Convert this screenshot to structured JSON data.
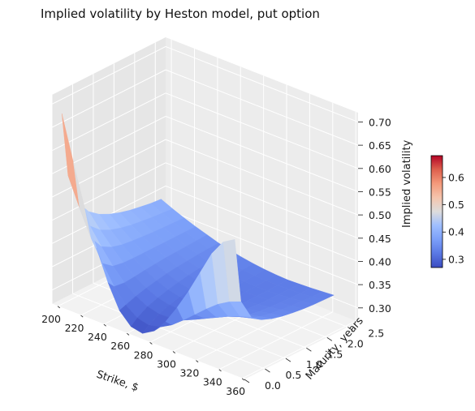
{
  "chart_data": {
    "type": "surface",
    "title": "Implied volatility by Heston model, put option",
    "xlabel": "Strike, $",
    "ylabel": "Maturity, years",
    "zlabel": "Implied volatility",
    "xlim": [
      195,
      362
    ],
    "ylim": [
      0.0,
      2.75
    ],
    "zlim": [
      0.27,
      0.72
    ],
    "x_ticks": [
      200,
      220,
      240,
      260,
      280,
      300,
      320,
      340,
      360
    ],
    "y_ticks": [
      0.0,
      0.5,
      1.0,
      1.5,
      2.0,
      2.5
    ],
    "z_ticks": [
      0.3,
      0.35,
      0.4,
      0.45,
      0.5,
      0.55,
      0.6,
      0.65,
      0.7
    ],
    "x_tick_labels": [
      "200",
      "220",
      "240",
      "260",
      "280",
      "300",
      "320",
      "340",
      "360"
    ],
    "y_tick_labels": [
      "0.0",
      "0.5",
      "1.0",
      "1.5",
      "2.0",
      "2.5"
    ],
    "z_tick_labels": [
      "0.30",
      "0.35",
      "0.40",
      "0.45",
      "0.50",
      "0.55",
      "0.60",
      "0.65",
      "0.70"
    ],
    "strikes": [
      200,
      210,
      220,
      230,
      240,
      250,
      260,
      270,
      280,
      290,
      300,
      310,
      320,
      330,
      340,
      350
    ],
    "maturities": [
      0.1,
      0.25,
      0.5,
      0.75,
      1.0,
      1.25,
      1.5,
      1.75,
      2.0,
      2.25,
      2.5
    ],
    "surface_z": [
      [
        0.68,
        0.585,
        0.495,
        0.42,
        0.355,
        0.305,
        0.28,
        0.275,
        0.29,
        0.32,
        0.36,
        0.405,
        0.455,
        0.505,
        0.54,
        0.555
      ],
      [
        0.54,
        0.48,
        0.425,
        0.38,
        0.34,
        0.31,
        0.292,
        0.286,
        0.292,
        0.306,
        0.326,
        0.348,
        0.37,
        0.39,
        0.405,
        0.415
      ],
      [
        0.47,
        0.43,
        0.395,
        0.363,
        0.337,
        0.318,
        0.305,
        0.299,
        0.3,
        0.306,
        0.316,
        0.328,
        0.34,
        0.352,
        0.362,
        0.37
      ],
      [
        0.44,
        0.41,
        0.383,
        0.359,
        0.339,
        0.324,
        0.313,
        0.307,
        0.306,
        0.309,
        0.315,
        0.323,
        0.331,
        0.34,
        0.347,
        0.353
      ],
      [
        0.423,
        0.399,
        0.377,
        0.358,
        0.342,
        0.329,
        0.319,
        0.313,
        0.311,
        0.312,
        0.316,
        0.321,
        0.327,
        0.333,
        0.339,
        0.344
      ],
      [
        0.412,
        0.392,
        0.374,
        0.358,
        0.344,
        0.333,
        0.324,
        0.318,
        0.315,
        0.315,
        0.317,
        0.32,
        0.325,
        0.329,
        0.334,
        0.338
      ],
      [
        0.404,
        0.387,
        0.372,
        0.358,
        0.346,
        0.336,
        0.328,
        0.322,
        0.318,
        0.317,
        0.318,
        0.32,
        0.323,
        0.327,
        0.331,
        0.334
      ],
      [
        0.398,
        0.384,
        0.37,
        0.358,
        0.347,
        0.338,
        0.331,
        0.325,
        0.321,
        0.319,
        0.319,
        0.32,
        0.322,
        0.325,
        0.328,
        0.331
      ],
      [
        0.394,
        0.381,
        0.369,
        0.358,
        0.348,
        0.34,
        0.333,
        0.327,
        0.323,
        0.321,
        0.32,
        0.32,
        0.322,
        0.324,
        0.327,
        0.329
      ],
      [
        0.39,
        0.379,
        0.368,
        0.358,
        0.349,
        0.341,
        0.334,
        0.329,
        0.325,
        0.322,
        0.321,
        0.321,
        0.322,
        0.323,
        0.325,
        0.328
      ],
      [
        0.388,
        0.377,
        0.367,
        0.358,
        0.35,
        0.342,
        0.336,
        0.331,
        0.327,
        0.324,
        0.322,
        0.321,
        0.322,
        0.323,
        0.325,
        0.327
      ]
    ],
    "colormap": "coolwarm",
    "colorbar": {
      "range": [
        0.27,
        0.68
      ],
      "ticks": [
        0.3,
        0.4,
        0.5,
        0.6
      ],
      "tick_labels": [
        "0.3",
        "0.4",
        "0.5",
        "0.6"
      ]
    },
    "grid": true
  }
}
